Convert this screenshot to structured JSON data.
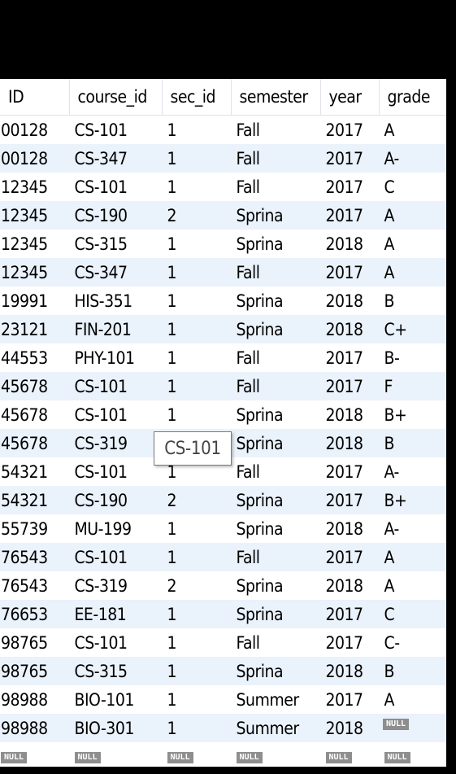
{
  "colors": {
    "background": "#000000",
    "grid_background": "#ffffff",
    "alternate_row": "#eaf2fb",
    "null_badge": "#8e8e8e"
  },
  "table": {
    "columns": [
      "ID",
      "course_id",
      "sec_id",
      "semester",
      "year",
      "grade"
    ],
    "rows": [
      [
        "00128",
        "CS-101",
        "1",
        "Fall",
        "2017",
        "A"
      ],
      [
        "00128",
        "CS-347",
        "1",
        "Fall",
        "2017",
        "A-"
      ],
      [
        "12345",
        "CS-101",
        "1",
        "Fall",
        "2017",
        "C"
      ],
      [
        "12345",
        "CS-190",
        "2",
        "Sprina",
        "2017",
        "A"
      ],
      [
        "12345",
        "CS-315",
        "1",
        "Sprina",
        "2018",
        "A"
      ],
      [
        "12345",
        "CS-347",
        "1",
        "Fall",
        "2017",
        "A"
      ],
      [
        "19991",
        "HIS-351",
        "1",
        "Sprina",
        "2018",
        "B"
      ],
      [
        "23121",
        "FIN-201",
        "1",
        "Sprina",
        "2018",
        "C+"
      ],
      [
        "44553",
        "PHY-101",
        "1",
        "Fall",
        "2017",
        "B-"
      ],
      [
        "45678",
        "CS-101",
        "1",
        "Fall",
        "2017",
        "F"
      ],
      [
        "45678",
        "CS-101",
        "1",
        "Sprina",
        "2018",
        "B+"
      ],
      [
        "45678",
        "CS-319",
        "1",
        "Sprina",
        "2018",
        "B"
      ],
      [
        "54321",
        "CS-101",
        "1",
        "Fall",
        "2017",
        "A-"
      ],
      [
        "54321",
        "CS-190",
        "2",
        "Sprina",
        "2017",
        "B+"
      ],
      [
        "55739",
        "MU-199",
        "1",
        "Sprina",
        "2018",
        "A-"
      ],
      [
        "76543",
        "CS-101",
        "1",
        "Fall",
        "2017",
        "A"
      ],
      [
        "76543",
        "CS-319",
        "2",
        "Sprina",
        "2018",
        "A"
      ],
      [
        "76653",
        "EE-181",
        "1",
        "Sprina",
        "2017",
        "C"
      ],
      [
        "98765",
        "CS-101",
        "1",
        "Fall",
        "2017",
        "C-"
      ],
      [
        "98765",
        "CS-315",
        "1",
        "Sprina",
        "2018",
        "B"
      ],
      [
        "98988",
        "BIO-101",
        "1",
        "Summer",
        "2017",
        "A"
      ],
      [
        "98988",
        "BIO-301",
        "1",
        "Summer",
        "2018",
        ""
      ]
    ],
    "null_label": "NULL"
  },
  "tooltip": {
    "text": "CS-101"
  }
}
